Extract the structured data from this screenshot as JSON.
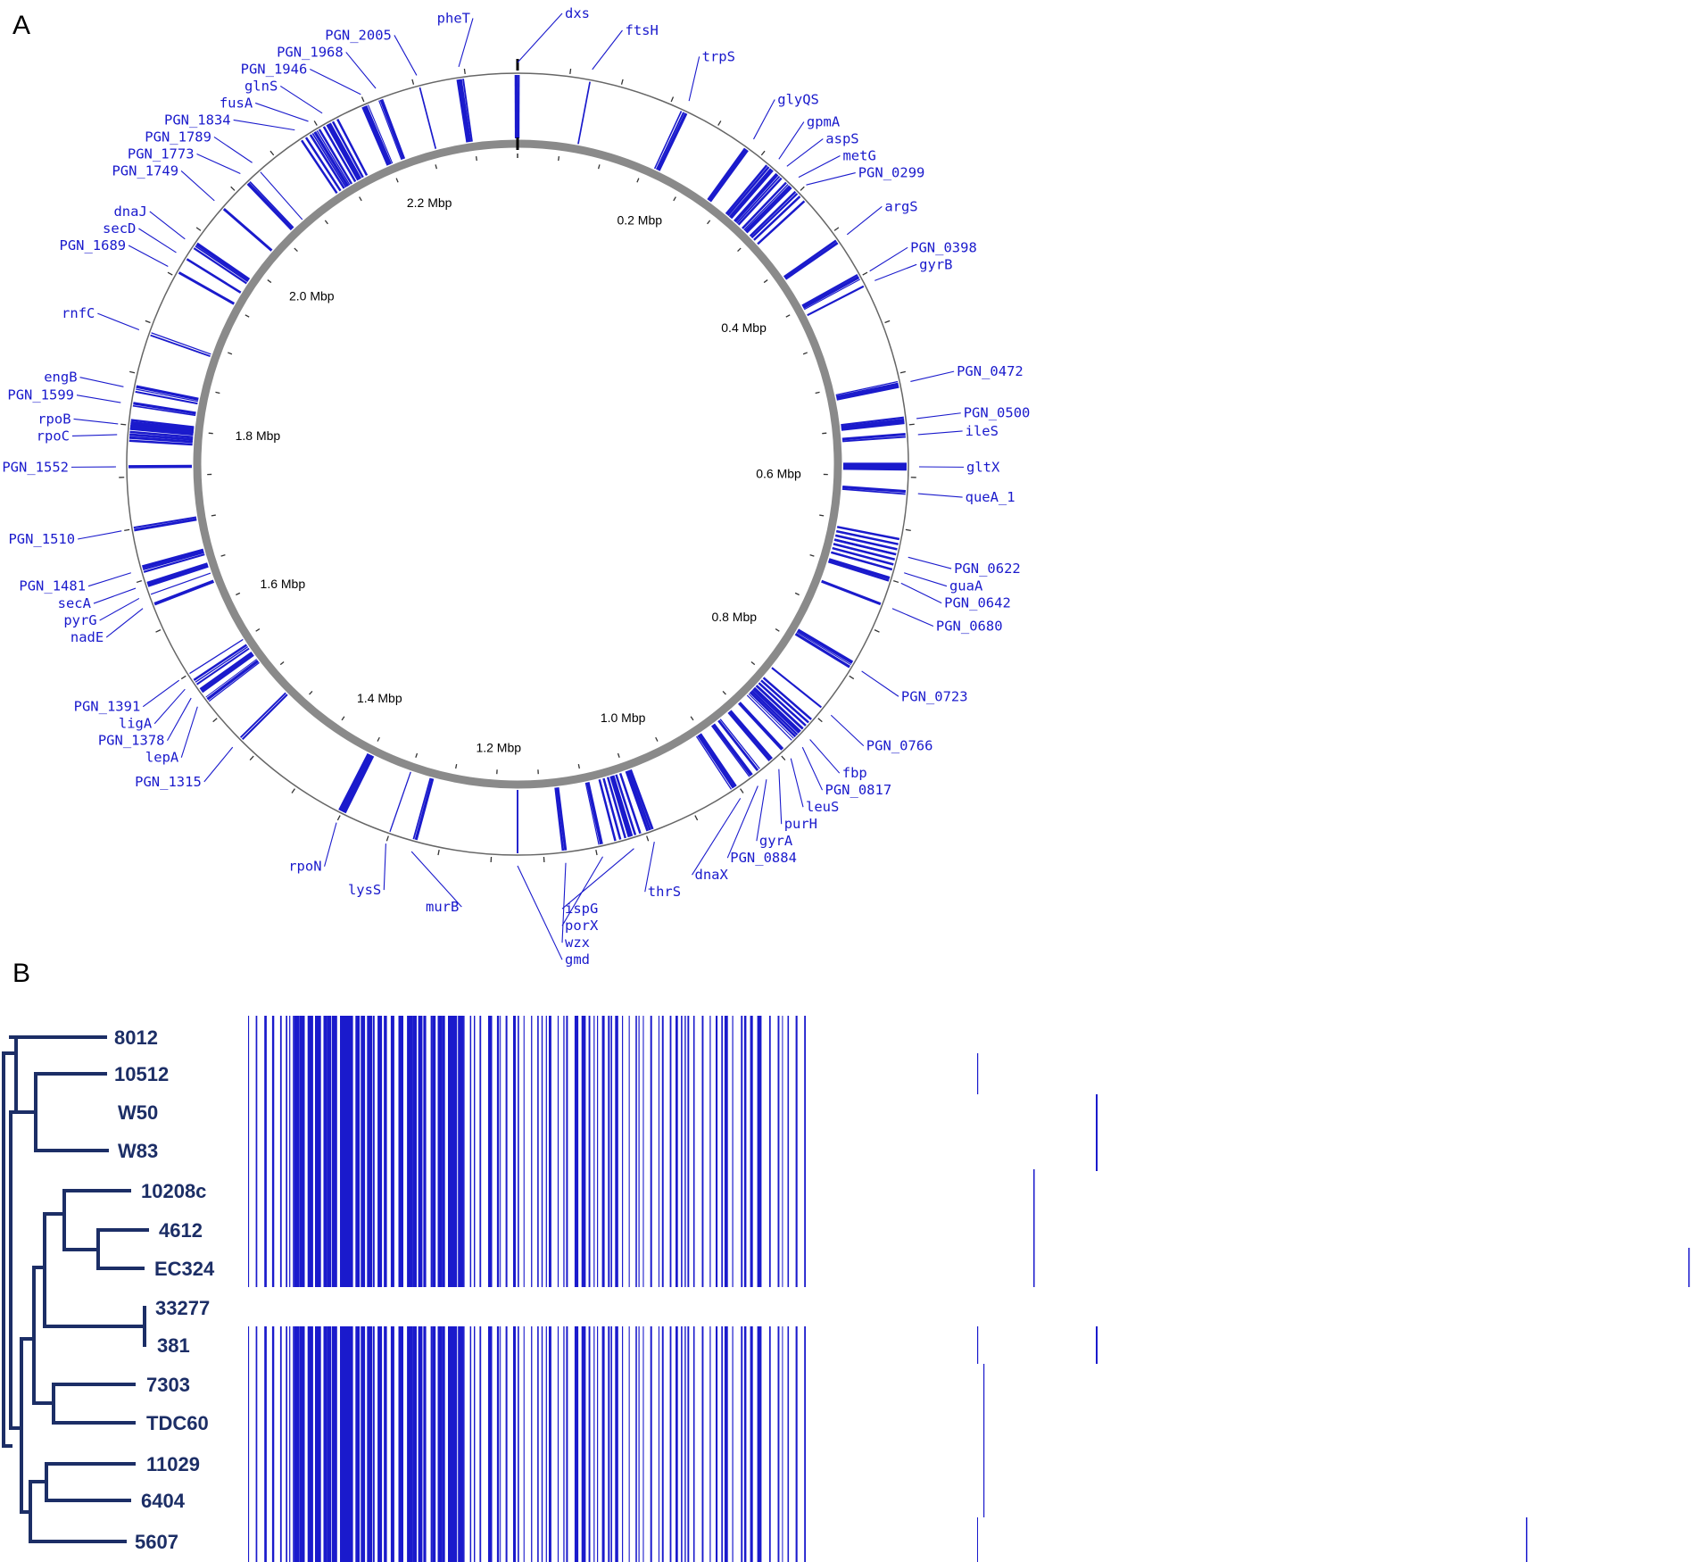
{
  "panels": {
    "a": "A",
    "b": "B"
  },
  "colors": {
    "accent": "#1a1acc",
    "tree": "#1c2e66",
    "ring": "#8a8a8a",
    "text": "#000000"
  },
  "genome": {
    "total_mbp": 2.35,
    "mbp_labels": [
      {
        "pos": 0.2,
        "text": "0.2 Mbp"
      },
      {
        "pos": 0.4,
        "text": "0.4 Mbp"
      },
      {
        "pos": 0.6,
        "text": "0.6 Mbp"
      },
      {
        "pos": 0.8,
        "text": "0.8 Mbp"
      },
      {
        "pos": 1.0,
        "text": "1.0 Mbp"
      },
      {
        "pos": 1.2,
        "text": "1.2 Mbp"
      },
      {
        "pos": 1.4,
        "text": "1.4 Mbp"
      },
      {
        "pos": 1.6,
        "text": "1.6 Mbp"
      },
      {
        "pos": 1.8,
        "text": "1.8 Mbp"
      },
      {
        "pos": 2.0,
        "text": "2.0 Mbp"
      },
      {
        "pos": 2.2,
        "text": "2.2 Mbp"
      }
    ],
    "genes": [
      {
        "name": "dxs",
        "pos": 0.0
      },
      {
        "name": "ftsH",
        "pos": 0.07
      },
      {
        "name": "trpS",
        "pos": 0.165
      },
      {
        "name": "glyQS",
        "pos": 0.235
      },
      {
        "name": "gpmA",
        "pos": 0.265
      },
      {
        "name": "aspS",
        "pos": 0.275
      },
      {
        "name": "metG",
        "pos": 0.29
      },
      {
        "name": "PGN_0299",
        "pos": 0.3
      },
      {
        "name": "argS",
        "pos": 0.36
      },
      {
        "name": "PGN_0398",
        "pos": 0.4
      },
      {
        "name": "gyrB",
        "pos": 0.41
      },
      {
        "name": "PGN_0472",
        "pos": 0.51
      },
      {
        "name": "PGN_0500",
        "pos": 0.545
      },
      {
        "name": "ileS",
        "pos": 0.56
      },
      {
        "name": "gltX",
        "pos": 0.59
      },
      {
        "name": "queA_1",
        "pos": 0.615
      },
      {
        "name": "PGN_0622",
        "pos": 0.675
      },
      {
        "name": "guaA",
        "pos": 0.69
      },
      {
        "name": "PGN_0642",
        "pos": 0.7
      },
      {
        "name": "PGN_0680",
        "pos": 0.725
      },
      {
        "name": "PGN_0723",
        "pos": 0.79
      },
      {
        "name": "PGN_0766",
        "pos": 0.84
      },
      {
        "name": "fbp",
        "pos": 0.87
      },
      {
        "name": "PGN_0817",
        "pos": 0.88
      },
      {
        "name": "leuS",
        "pos": 0.895
      },
      {
        "name": "purH",
        "pos": 0.91
      },
      {
        "name": "gyrA",
        "pos": 0.925
      },
      {
        "name": "PGN_0884",
        "pos": 0.935
      },
      {
        "name": "dnaX",
        "pos": 0.955
      },
      {
        "name": "thrS",
        "pos": 1.045
      },
      {
        "name": "ispG",
        "pos": 1.065
      },
      {
        "name": "porX",
        "pos": 1.095
      },
      {
        "name": "wzx",
        "pos": 1.13
      },
      {
        "name": "gmd",
        "pos": 1.175
      },
      {
        "name": "murB",
        "pos": 1.275
      },
      {
        "name": "lysS",
        "pos": 1.3
      },
      {
        "name": "rpoN",
        "pos": 1.35
      },
      {
        "name": "PGN_1315",
        "pos": 1.47
      },
      {
        "name": "lepA",
        "pos": 1.52
      },
      {
        "name": "PGN_1378",
        "pos": 1.53
      },
      {
        "name": "ligA",
        "pos": 1.54
      },
      {
        "name": "PGN_1391",
        "pos": 1.55
      },
      {
        "name": "nadE",
        "pos": 1.625
      },
      {
        "name": "pyrG",
        "pos": 1.635
      },
      {
        "name": "secA",
        "pos": 1.645
      },
      {
        "name": "PGN_1481",
        "pos": 1.66
      },
      {
        "name": "PGN_1510",
        "pos": 1.7
      },
      {
        "name": "PGN_1552",
        "pos": 1.76
      },
      {
        "name": "rpoC",
        "pos": 1.79
      },
      {
        "name": "rpoB",
        "pos": 1.8
      },
      {
        "name": "PGN_1599",
        "pos": 1.82
      },
      {
        "name": "engB",
        "pos": 1.835
      },
      {
        "name": "rnfC",
        "pos": 1.89
      },
      {
        "name": "PGN_1689",
        "pos": 1.955
      },
      {
        "name": "secD",
        "pos": 1.97
      },
      {
        "name": "dnaJ",
        "pos": 1.985
      },
      {
        "name": "PGN_1749",
        "pos": 2.03
      },
      {
        "name": "PGN_1773",
        "pos": 2.065
      },
      {
        "name": "PGN_1789",
        "pos": 2.08
      },
      {
        "name": "PGN_1834",
        "pos": 2.13
      },
      {
        "name": "fusA",
        "pos": 2.145
      },
      {
        "name": "glnS",
        "pos": 2.16
      },
      {
        "name": "PGN_1946",
        "pos": 2.2
      },
      {
        "name": "PGN_1968",
        "pos": 2.215
      },
      {
        "name": "PGN_2005",
        "pos": 2.255
      },
      {
        "name": "pheT",
        "pos": 2.295
      }
    ]
  },
  "tree": {
    "strains": [
      "8012",
      "10512",
      "W50",
      "W83",
      "10208c",
      "4612",
      "EC324",
      "33277",
      "381",
      "7303",
      "TDC60",
      "11029",
      "6404",
      "5607"
    ]
  }
}
